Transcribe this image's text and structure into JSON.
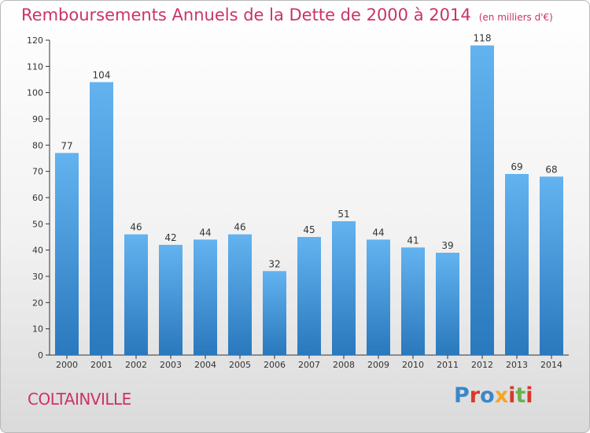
{
  "title": "Remboursements Annuels de la Dette de 2000 à 2014",
  "unit": "(en milliers d'€)",
  "commune": "COLTAINVILLE",
  "logo": "Proxiti",
  "colors": {
    "title": "#cc3366",
    "bar_light": "#63b3f0",
    "bar_dark": "#2a78bd"
  },
  "chart_data": {
    "type": "bar",
    "categories": [
      "2000",
      "2001",
      "2002",
      "2003",
      "2004",
      "2005",
      "2006",
      "2007",
      "2008",
      "2009",
      "2010",
      "2011",
      "2012",
      "2013",
      "2014"
    ],
    "values": [
      77,
      104,
      46,
      42,
      44,
      46,
      32,
      45,
      51,
      44,
      41,
      39,
      118,
      69,
      68
    ],
    "ylim": [
      0,
      120
    ],
    "yticks": [
      0,
      10,
      20,
      30,
      40,
      50,
      60,
      70,
      80,
      90,
      100,
      110,
      120
    ],
    "grid": false,
    "legend": "none"
  }
}
